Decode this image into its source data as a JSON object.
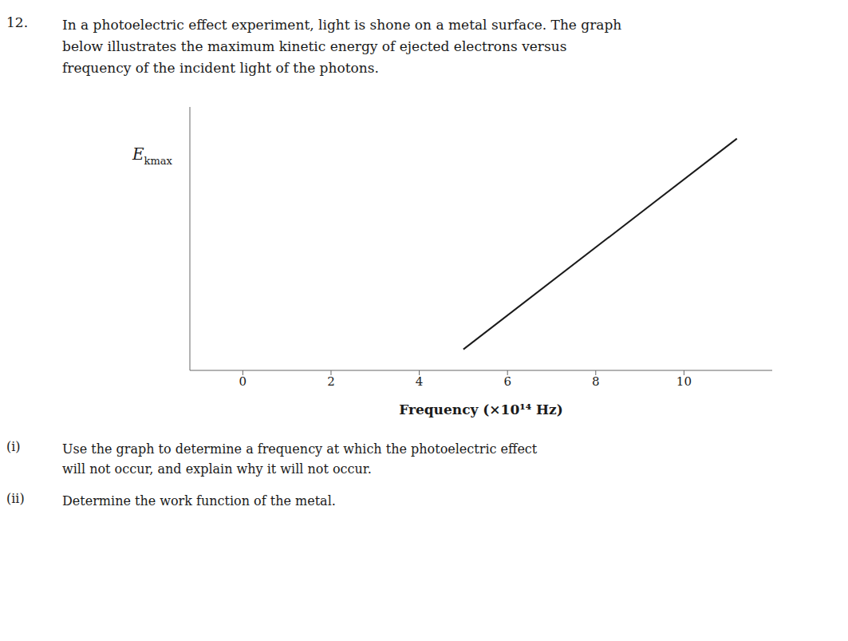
{
  "chart_data": {
    "type": "line",
    "annotations": [
      {
        "label": "12.",
        "lines": [
          "In a photoelectric effect experiment, light is shone on a metal surface. The graph",
          "below illustrates the maximum kinetic energy of ejected electrons versus",
          "frequency of the incident light of the photons."
        ]
      },
      {
        "label": "(i)",
        "lines": [
          "Use the graph to determine a frequency at which the photoelectric effect",
          "will not occur, and explain why it will not occur."
        ]
      },
      {
        "label": "(ii)",
        "lines": [
          "Determine the work function of the metal."
        ]
      }
    ],
    "x_label": "Frequency (×10¹⁴ Hz)",
    "y_label": {
      "main": "E",
      "subscript": "kmax"
    },
    "x": [
      5,
      11.2
    ],
    "values": [
      0,
      1.0
    ],
    "color": "#1a1a1a",
    "xlim": [
      -1.2,
      12.0
    ],
    "ylim": [
      -0.1,
      1.15
    ],
    "xticks": [
      0,
      2,
      4,
      6,
      8,
      10
    ],
    "tick_labels": "x",
    "grid": false
  }
}
